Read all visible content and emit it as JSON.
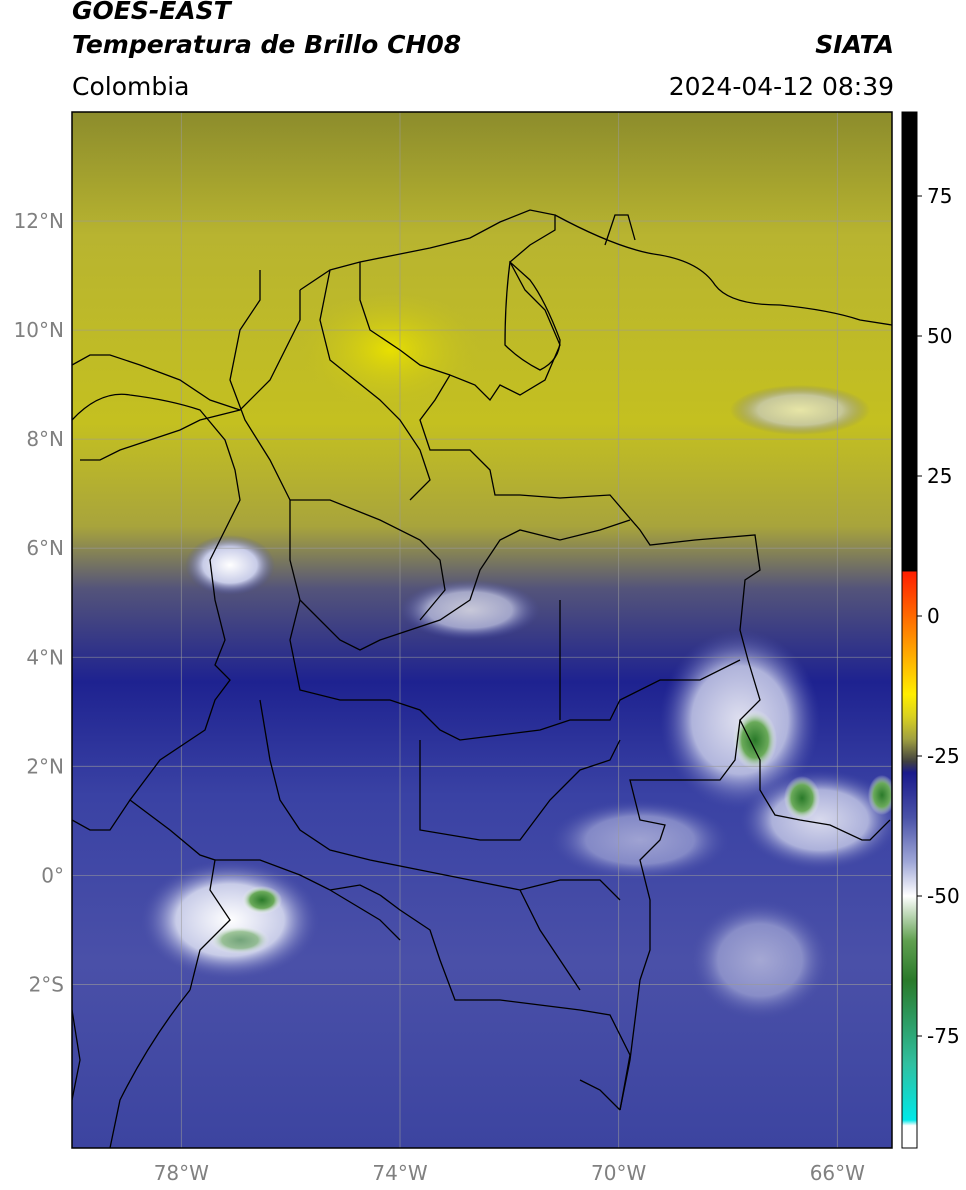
{
  "header": {
    "satellite": "GOES-EAST",
    "product": "Temperatura de Brillo CH08",
    "agency": "SIATA",
    "region": "Colombia",
    "datetime": "2024-04-12 08:39"
  },
  "map": {
    "lon_range": [
      -80,
      -65
    ],
    "lat_range": [
      -5,
      14
    ],
    "lat_ticks": [
      {
        "value": 12,
        "label": "12°N"
      },
      {
        "value": 10,
        "label": "10°N"
      },
      {
        "value": 8,
        "label": "8°N"
      },
      {
        "value": 6,
        "label": "6°N"
      },
      {
        "value": 4,
        "label": "4°N"
      },
      {
        "value": 2,
        "label": "2°N"
      },
      {
        "value": 0,
        "label": "0°"
      },
      {
        "value": -2,
        "label": "2°S"
      }
    ],
    "lon_ticks": [
      {
        "value": -78,
        "label": "78°W"
      },
      {
        "value": -74,
        "label": "74°W"
      },
      {
        "value": -70,
        "label": "70°W"
      },
      {
        "value": -66,
        "label": "66°W"
      }
    ],
    "grid": true
  },
  "colorbar": {
    "range": [
      -95,
      90
    ],
    "ticks": [
      {
        "value": 75,
        "label": "75"
      },
      {
        "value": 50,
        "label": "50"
      },
      {
        "value": 25,
        "label": "25"
      },
      {
        "value": 0,
        "label": "0"
      },
      {
        "value": -25,
        "label": "-25"
      },
      {
        "value": -50,
        "label": "-50"
      },
      {
        "value": -75,
        "label": "-75"
      }
    ],
    "stops": [
      {
        "value": 90,
        "color": "#000000"
      },
      {
        "value": 8,
        "color": "#000000"
      },
      {
        "value": 7.9,
        "color": "#ff1e00"
      },
      {
        "value": -5,
        "color": "#ff9900"
      },
      {
        "value": -14,
        "color": "#ffee00"
      },
      {
        "value": -18,
        "color": "#d8d020"
      },
      {
        "value": -22,
        "color": "#a0a040"
      },
      {
        "value": -26,
        "color": "#404040"
      },
      {
        "value": -28,
        "color": "#1a1a8c"
      },
      {
        "value": -36,
        "color": "#4a52a8"
      },
      {
        "value": -44,
        "color": "#a0a8d8"
      },
      {
        "value": -50,
        "color": "#ffffff"
      },
      {
        "value": -58,
        "color": "#60a050"
      },
      {
        "value": -65,
        "color": "#2a7a2a"
      },
      {
        "value": -80,
        "color": "#30c0a0"
      },
      {
        "value": -90,
        "color": "#00e8e8"
      },
      {
        "value": -91,
        "color": "#ffffff"
      },
      {
        "value": -95,
        "color": "#ffffff"
      }
    ]
  }
}
